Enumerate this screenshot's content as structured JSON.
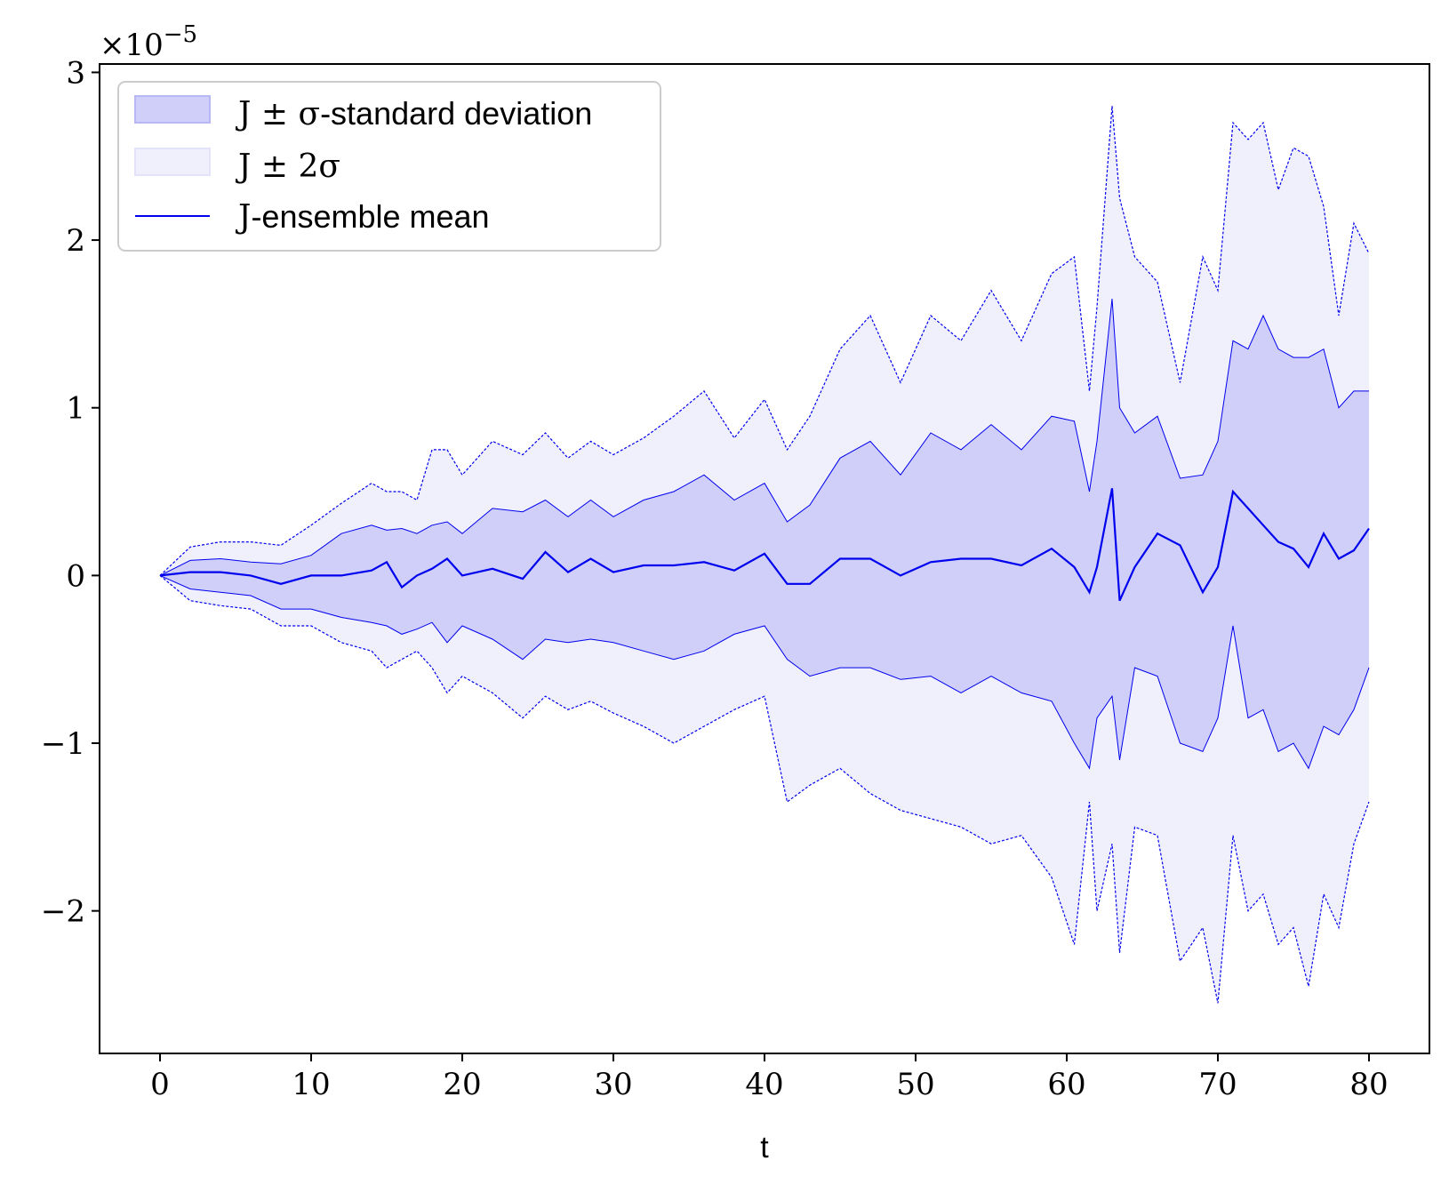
{
  "chart_data": {
    "type": "line",
    "xlabel": "t",
    "ylabel": "",
    "xlim": [
      -4,
      84
    ],
    "ylim": [
      -2.85,
      3.05
    ],
    "y_multiplier_label": "×10",
    "y_multiplier_exponent": "−5",
    "xticks": [
      0,
      10,
      20,
      30,
      40,
      50,
      60,
      70,
      80
    ],
    "xtick_labels": [
      "0",
      "10",
      "20",
      "30",
      "40",
      "50",
      "60",
      "70",
      "80"
    ],
    "yticks": [
      -2,
      -1,
      0,
      1,
      2,
      3
    ],
    "ytick_labels": [
      "−2",
      "−1",
      "0",
      "1",
      "2",
      "3"
    ],
    "grid": false,
    "legend_position": "top-left",
    "legend": {
      "band1": {
        "math": "J ± σ",
        "text": "-standard deviation"
      },
      "band2": {
        "math": "J ± 2σ",
        "text": ""
      },
      "mean": {
        "math": "J",
        "text": "-ensemble mean"
      }
    },
    "colors": {
      "line": "#0000ee",
      "band1": "#cfcffa",
      "band2": "#f0f0fc"
    },
    "series": [
      {
        "name": "J-ensemble mean",
        "role": "mean",
        "x": [
          0,
          2,
          4,
          6,
          8,
          10,
          12,
          14,
          15,
          16,
          17,
          18,
          19,
          20,
          22,
          24,
          25.5,
          27,
          28.5,
          30,
          32,
          34,
          36,
          38,
          40,
          41.5,
          43,
          45,
          47,
          49,
          51,
          53,
          55,
          57,
          59,
          60.5,
          61.5,
          62,
          63,
          63.5,
          64.5,
          66,
          67.5,
          69,
          70,
          71,
          72,
          73,
          74,
          75,
          76,
          77,
          78,
          79,
          80
        ],
        "y": [
          0,
          0.02,
          0.02,
          0,
          -0.05,
          0,
          0,
          0.03,
          0.08,
          -0.07,
          0,
          0.04,
          0.1,
          0,
          0.04,
          -0.02,
          0.14,
          0.02,
          0.1,
          0.02,
          0.06,
          0.06,
          0.08,
          0.03,
          0.13,
          -0.05,
          -0.05,
          0.1,
          0.1,
          0,
          0.08,
          0.1,
          0.1,
          0.06,
          0.16,
          0.05,
          -0.1,
          0.05,
          0.52,
          -0.15,
          0.05,
          0.25,
          0.18,
          -0.1,
          0.05,
          0.5,
          0.4,
          0.3,
          0.2,
          0.16,
          0.05,
          0.25,
          0.1,
          0.15,
          0.28
        ]
      },
      {
        "name": "J + σ",
        "role": "upper1",
        "x": [
          0,
          2,
          4,
          6,
          8,
          10,
          12,
          14,
          15,
          16,
          17,
          18,
          19,
          20,
          22,
          24,
          25.5,
          27,
          28.5,
          30,
          32,
          34,
          36,
          38,
          40,
          41.5,
          43,
          45,
          47,
          49,
          51,
          53,
          55,
          57,
          59,
          60.5,
          61.5,
          62,
          63,
          63.5,
          64.5,
          66,
          67.5,
          69,
          70,
          71,
          72,
          73,
          74,
          75,
          76,
          77,
          78,
          79,
          80
        ],
        "y": [
          0,
          0.09,
          0.1,
          0.08,
          0.07,
          0.12,
          0.25,
          0.3,
          0.27,
          0.28,
          0.25,
          0.3,
          0.32,
          0.25,
          0.4,
          0.38,
          0.45,
          0.35,
          0.45,
          0.35,
          0.45,
          0.5,
          0.6,
          0.45,
          0.55,
          0.32,
          0.42,
          0.7,
          0.8,
          0.6,
          0.85,
          0.75,
          0.9,
          0.75,
          0.95,
          0.92,
          0.5,
          0.8,
          1.65,
          1.0,
          0.85,
          0.95,
          0.58,
          0.6,
          0.8,
          1.4,
          1.35,
          1.55,
          1.35,
          1.3,
          1.3,
          1.35,
          1.0,
          1.1,
          1.1
        ]
      },
      {
        "name": "J − σ",
        "role": "lower1",
        "x": [
          0,
          2,
          4,
          6,
          8,
          10,
          12,
          14,
          15,
          16,
          17,
          18,
          19,
          20,
          22,
          24,
          25.5,
          27,
          28.5,
          30,
          32,
          34,
          36,
          38,
          40,
          41.5,
          43,
          45,
          47,
          49,
          51,
          53,
          55,
          57,
          59,
          60.5,
          61.5,
          62,
          63,
          63.5,
          64.5,
          66,
          67.5,
          69,
          70,
          71,
          72,
          73,
          74,
          75,
          76,
          77,
          78,
          79,
          80
        ],
        "y": [
          0,
          -0.08,
          -0.1,
          -0.12,
          -0.2,
          -0.2,
          -0.25,
          -0.28,
          -0.3,
          -0.35,
          -0.32,
          -0.28,
          -0.4,
          -0.3,
          -0.38,
          -0.5,
          -0.38,
          -0.4,
          -0.38,
          -0.4,
          -0.45,
          -0.5,
          -0.45,
          -0.35,
          -0.3,
          -0.5,
          -0.6,
          -0.55,
          -0.55,
          -0.62,
          -0.6,
          -0.7,
          -0.6,
          -0.7,
          -0.75,
          -1.0,
          -1.15,
          -0.85,
          -0.72,
          -1.1,
          -0.55,
          -0.6,
          -1.0,
          -1.05,
          -0.85,
          -0.3,
          -0.85,
          -0.8,
          -1.05,
          -1.0,
          -1.15,
          -0.9,
          -0.95,
          -0.8,
          -0.55
        ]
      },
      {
        "name": "J + 2σ",
        "role": "upper2",
        "x": [
          0,
          2,
          4,
          6,
          8,
          10,
          12,
          14,
          15,
          16,
          17,
          18,
          19,
          20,
          22,
          24,
          25.5,
          27,
          28.5,
          30,
          32,
          34,
          36,
          38,
          40,
          41.5,
          43,
          45,
          47,
          49,
          51,
          53,
          55,
          57,
          59,
          60.5,
          61.5,
          62,
          63,
          63.5,
          64.5,
          66,
          67.5,
          69,
          70,
          71,
          72,
          73,
          74,
          75,
          76,
          77,
          78,
          79,
          80
        ],
        "y": [
          0,
          0.17,
          0.2,
          0.2,
          0.18,
          0.3,
          0.43,
          0.55,
          0.5,
          0.5,
          0.45,
          0.75,
          0.75,
          0.6,
          0.8,
          0.72,
          0.85,
          0.7,
          0.8,
          0.72,
          0.82,
          0.95,
          1.1,
          0.82,
          1.05,
          0.75,
          0.95,
          1.35,
          1.55,
          1.15,
          1.55,
          1.4,
          1.7,
          1.4,
          1.8,
          1.9,
          1.1,
          1.6,
          2.8,
          2.25,
          1.9,
          1.75,
          1.15,
          1.9,
          1.7,
          2.7,
          2.6,
          2.7,
          2.3,
          2.55,
          2.5,
          2.2,
          1.55,
          2.1,
          1.92
        ]
      },
      {
        "name": "J − 2σ",
        "role": "lower2",
        "x": [
          0,
          2,
          4,
          6,
          8,
          10,
          12,
          14,
          15,
          16,
          17,
          18,
          19,
          20,
          22,
          24,
          25.5,
          27,
          28.5,
          30,
          32,
          34,
          36,
          38,
          40,
          41.5,
          43,
          45,
          47,
          49,
          51,
          53,
          55,
          57,
          59,
          60.5,
          61.5,
          62,
          63,
          63.5,
          64.5,
          66,
          67.5,
          69,
          70,
          71,
          72,
          73,
          74,
          75,
          76,
          77,
          78,
          79,
          80
        ],
        "y": [
          0,
          -0.15,
          -0.18,
          -0.2,
          -0.3,
          -0.3,
          -0.4,
          -0.45,
          -0.55,
          -0.5,
          -0.45,
          -0.55,
          -0.7,
          -0.6,
          -0.7,
          -0.85,
          -0.72,
          -0.8,
          -0.75,
          -0.82,
          -0.9,
          -1.0,
          -0.9,
          -0.8,
          -0.72,
          -1.35,
          -1.25,
          -1.15,
          -1.3,
          -1.4,
          -1.45,
          -1.5,
          -1.6,
          -1.55,
          -1.8,
          -2.2,
          -1.35,
          -2.0,
          -1.6,
          -2.25,
          -1.5,
          -1.55,
          -2.3,
          -2.1,
          -2.55,
          -1.55,
          -2.0,
          -1.9,
          -2.2,
          -2.1,
          -2.45,
          -1.9,
          -2.1,
          -1.6,
          -1.35
        ]
      }
    ]
  }
}
